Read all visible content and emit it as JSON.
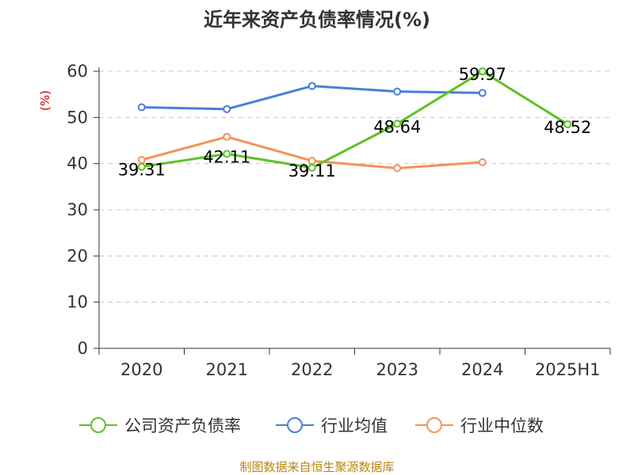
{
  "chart_data": {
    "type": "line",
    "title": "近年来资产负债率情况(%)",
    "ylabel": "(%)",
    "xlabel": "",
    "categories": [
      "2020",
      "2021",
      "2022",
      "2023",
      "2024",
      "2025H1"
    ],
    "ylim": [
      0,
      60
    ],
    "yticks": [
      0,
      10,
      20,
      30,
      40,
      50,
      60
    ],
    "grid": true,
    "legend_position": "bottom",
    "series": [
      {
        "name": "公司资产负债率",
        "color": "#5ec127",
        "values": [
          39.31,
          42.11,
          39.11,
          48.64,
          59.97,
          48.52
        ],
        "labels": [
          "39.31",
          "42.11",
          "39.11",
          "48.64",
          "59.97",
          "48.52"
        ]
      },
      {
        "name": "行业均值",
        "color": "#4a7fd6",
        "values": [
          52.2,
          51.8,
          56.8,
          55.6,
          55.3,
          null
        ]
      },
      {
        "name": "行业中位数",
        "color": "#f4925a",
        "values": [
          40.8,
          45.8,
          40.6,
          39.0,
          40.3,
          null
        ]
      }
    ],
    "source": "制图数据来自恒生聚源数据库"
  }
}
